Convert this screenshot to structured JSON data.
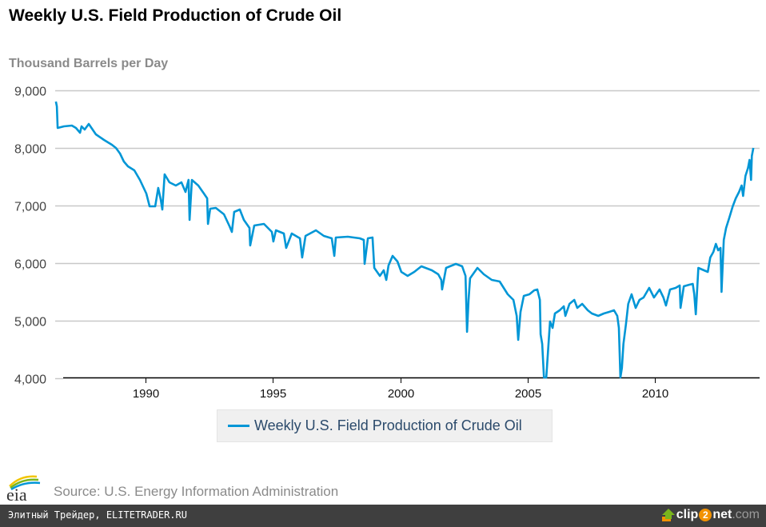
{
  "header": {
    "title": "Weekly U.S. Field Production of Crude Oil",
    "units": "Thousand Barrels per Day"
  },
  "legend": {
    "label": "Weekly U.S. Field Production of Crude Oil"
  },
  "source": {
    "text": "Source: U.S. Energy Information Administration",
    "logo_text": "eia"
  },
  "footer": {
    "left_text": "Элитный Трейдер, ELITETRADER.RU",
    "brand_pre": "clip",
    "brand_num": "2",
    "brand_post": "net",
    "brand_domain": ".com"
  },
  "chart_data": {
    "type": "line",
    "title": "Weekly U.S. Field Production of Crude Oil",
    "xlabel": "",
    "ylabel": "Thousand Barrels per Day",
    "xlim": [
      1986.48,
      2013.86
    ],
    "ylim": [
      4000,
      9000
    ],
    "grid": true,
    "legend_position": "bottom-center",
    "line_color": "#0096d6",
    "x_ticks": [
      1990,
      1995,
      2000,
      2005,
      2010
    ],
    "x_tick_labels": [
      "1990",
      "1995",
      "2000",
      "2005",
      "2010"
    ],
    "y_ticks": [
      4000,
      5000,
      6000,
      7000,
      8000,
      9000
    ],
    "y_tick_labels": [
      "4,000",
      "5,000",
      "6,000",
      "7,000",
      "8,000",
      "9,000"
    ],
    "series": [
      {
        "name": "Weekly U.S. Field Production of Crude Oil",
        "x": [
          1986.48,
          1986.52,
          1986.55,
          1986.8,
          1987.11,
          1987.27,
          1987.43,
          1987.49,
          1987.61,
          1987.77,
          1988.05,
          1988.37,
          1988.68,
          1988.84,
          1989.0,
          1989.15,
          1989.31,
          1989.56,
          1989.78,
          1990.03,
          1990.16,
          1990.38,
          1990.5,
          1990.6,
          1990.66,
          1990.75,
          1990.94,
          1991.19,
          1991.41,
          1991.57,
          1991.69,
          1991.73,
          1991.82,
          1992.07,
          1992.29,
          1992.42,
          1992.45,
          1992.54,
          1992.76,
          1993.08,
          1993.3,
          1993.39,
          1993.48,
          1993.7,
          1993.86,
          1994.08,
          1994.11,
          1994.27,
          1994.65,
          1994.96,
          1995.02,
          1995.12,
          1995.43,
          1995.52,
          1995.74,
          1996.06,
          1996.15,
          1996.28,
          1996.69,
          1997.0,
          1997.31,
          1997.41,
          1997.47,
          1997.94,
          1998.41,
          1998.57,
          1998.6,
          1998.73,
          1998.91,
          1998.98,
          1999.2,
          1999.35,
          1999.45,
          1999.54,
          1999.7,
          1999.89,
          2000.04,
          2000.29,
          2000.55,
          2000.83,
          2001.24,
          2001.49,
          2001.61,
          2001.64,
          2001.8,
          2002.18,
          2002.43,
          2002.56,
          2002.62,
          2002.68,
          2002.74,
          2003.03,
          2003.28,
          2003.59,
          2003.9,
          2004.22,
          2004.44,
          2004.57,
          2004.63,
          2004.72,
          2004.85,
          2005.07,
          2005.26,
          2005.38,
          2005.48,
          2005.51,
          2005.57,
          2005.64,
          2005.73,
          2005.82,
          2005.88,
          2005.98,
          2006.07,
          2006.26,
          2006.42,
          2006.48,
          2006.64,
          2006.83,
          2006.95,
          2007.14,
          2007.36,
          2007.52,
          2007.77,
          2007.99,
          2008.2,
          2008.39,
          2008.52,
          2008.58,
          2008.64,
          2008.7,
          2008.76,
          2008.86,
          2008.95,
          2009.08,
          2009.24,
          2009.39,
          2009.55,
          2009.77,
          2009.96,
          2010.18,
          2010.33,
          2010.43,
          2010.59,
          2010.81,
          2010.97,
          2011.0,
          2011.13,
          2011.35,
          2011.48,
          2011.54,
          2011.6,
          2011.7,
          2011.92,
          2012.07,
          2012.17,
          2012.29,
          2012.39,
          2012.48,
          2012.57,
          2012.61,
          2012.7,
          2012.79,
          2012.92,
          2013.05,
          2013.17,
          2013.3,
          2013.4,
          2013.46,
          2013.55,
          2013.65,
          2013.71,
          2013.77,
          2013.8,
          2013.86
        ],
        "y": [
          8806,
          8722,
          8347,
          8375,
          8389,
          8347,
          8264,
          8375,
          8319,
          8417,
          8236,
          8139,
          8056,
          8000,
          7903,
          7764,
          7681,
          7611,
          7444,
          7208,
          6986,
          6986,
          7306,
          7097,
          6931,
          7542,
          7403,
          7347,
          7403,
          7236,
          7444,
          6750,
          7444,
          7347,
          7208,
          7125,
          6681,
          6944,
          6958,
          6847,
          6639,
          6542,
          6889,
          6931,
          6750,
          6611,
          6306,
          6653,
          6681,
          6542,
          6375,
          6569,
          6514,
          6264,
          6514,
          6431,
          6097,
          6472,
          6569,
          6472,
          6431,
          6125,
          6444,
          6458,
          6431,
          6403,
          5986,
          6431,
          6444,
          5917,
          5778,
          5875,
          5708,
          5958,
          6125,
          6028,
          5847,
          5778,
          5847,
          5944,
          5875,
          5806,
          5708,
          5542,
          5917,
          5986,
          5944,
          5778,
          4806,
          5361,
          5736,
          5917,
          5806,
          5708,
          5681,
          5458,
          5361,
          5083,
          4667,
          5153,
          5431,
          5458,
          5528,
          5542,
          5361,
          4764,
          4597,
          4014,
          4014,
          4597,
          4986,
          4875,
          5125,
          5181,
          5250,
          5083,
          5292,
          5361,
          5222,
          5292,
          5181,
          5125,
          5083,
          5125,
          5153,
          5181,
          5083,
          4875,
          4014,
          4181,
          4597,
          4944,
          5292,
          5458,
          5222,
          5361,
          5403,
          5569,
          5403,
          5542,
          5403,
          5264,
          5542,
          5569,
          5611,
          5222,
          5597,
          5625,
          5639,
          5458,
          5111,
          5917,
          5875,
          5847,
          6097,
          6194,
          6333,
          6222,
          6264,
          5500,
          6403,
          6611,
          6792,
          6986,
          7125,
          7236,
          7347,
          7167,
          7514,
          7653,
          7792,
          7444,
          7861,
          8000
        ]
      }
    ]
  }
}
